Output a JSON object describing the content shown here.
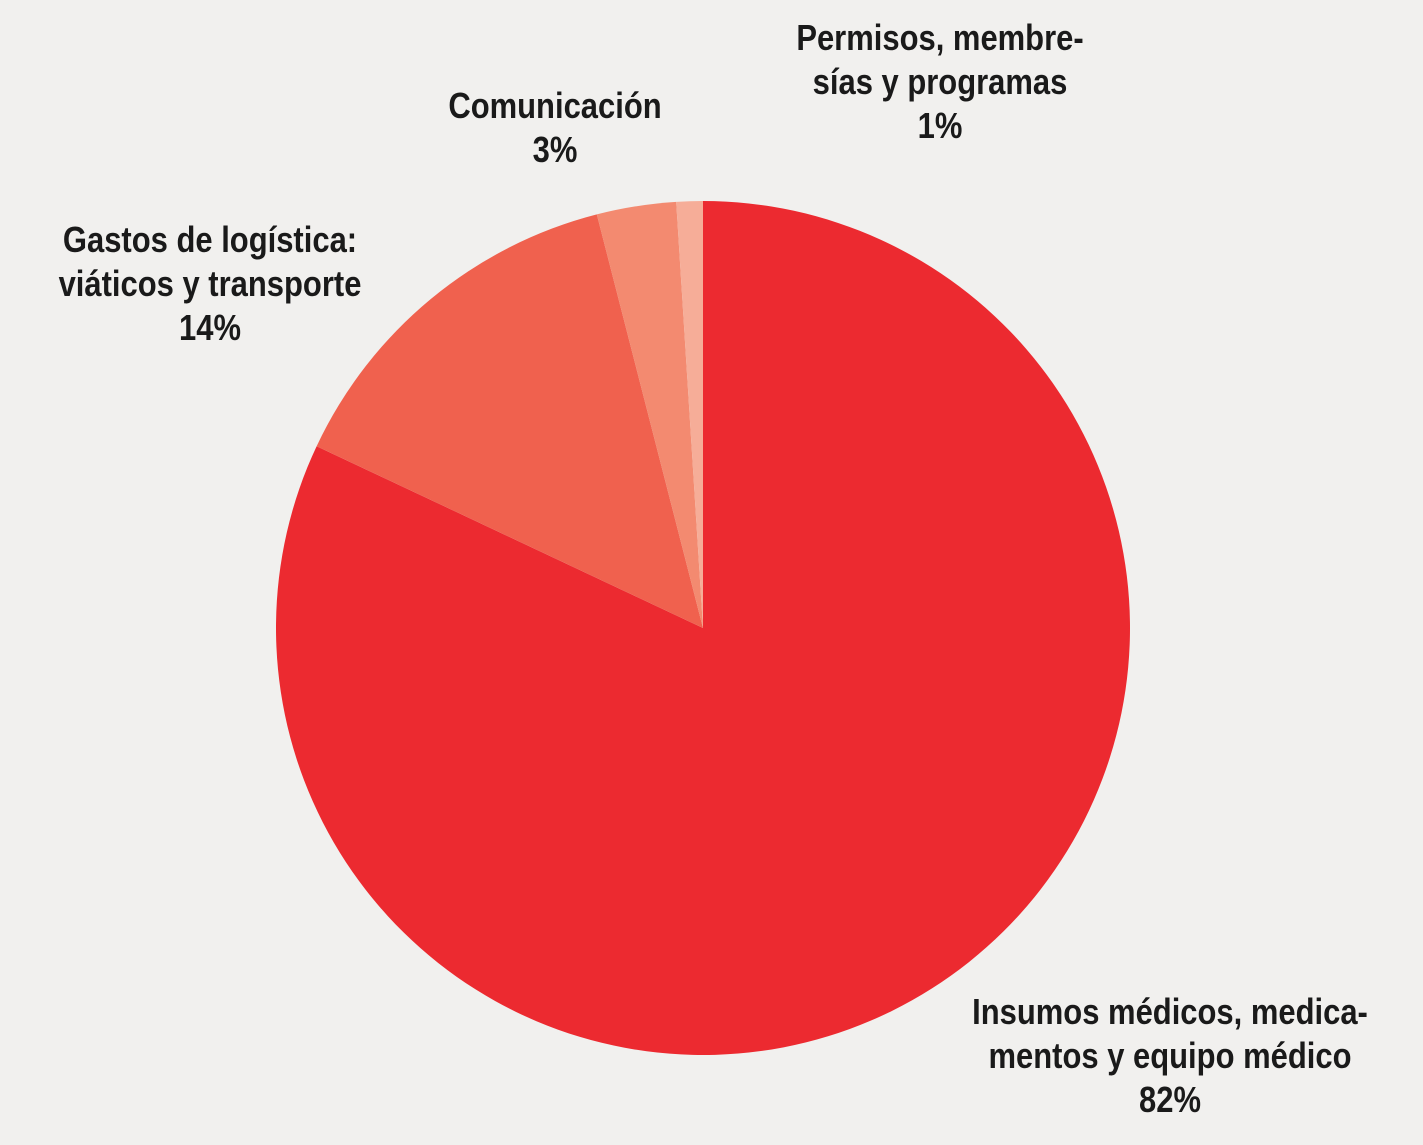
{
  "chart_data": {
    "type": "pie",
    "start_angle_deg": 0,
    "direction": "clockwise",
    "slices": [
      {
        "name": "Insumos médicos, medicamentos y equipo médico",
        "label_lines": [
          "Insumos médicos, medica-",
          "mentos y equipo médico"
        ],
        "value": 82,
        "percent_label": "82%",
        "color": "#ec2a30"
      },
      {
        "name": "Gastos de logística: viáticos y transporte",
        "label_lines": [
          "Gastos de logística:",
          "viáticos y transporte"
        ],
        "value": 14,
        "percent_label": "14%",
        "color": "#f0614e"
      },
      {
        "name": "Comunicación",
        "label_lines": [
          "Comunicación"
        ],
        "value": 3,
        "percent_label": "3%",
        "color": "#f38a70"
      },
      {
        "name": "Permisos, membresías y programas",
        "label_lines": [
          "Permisos, membre-",
          "sías y programas"
        ],
        "value": 1,
        "percent_label": "1%",
        "color": "#f6ad98"
      }
    ]
  }
}
